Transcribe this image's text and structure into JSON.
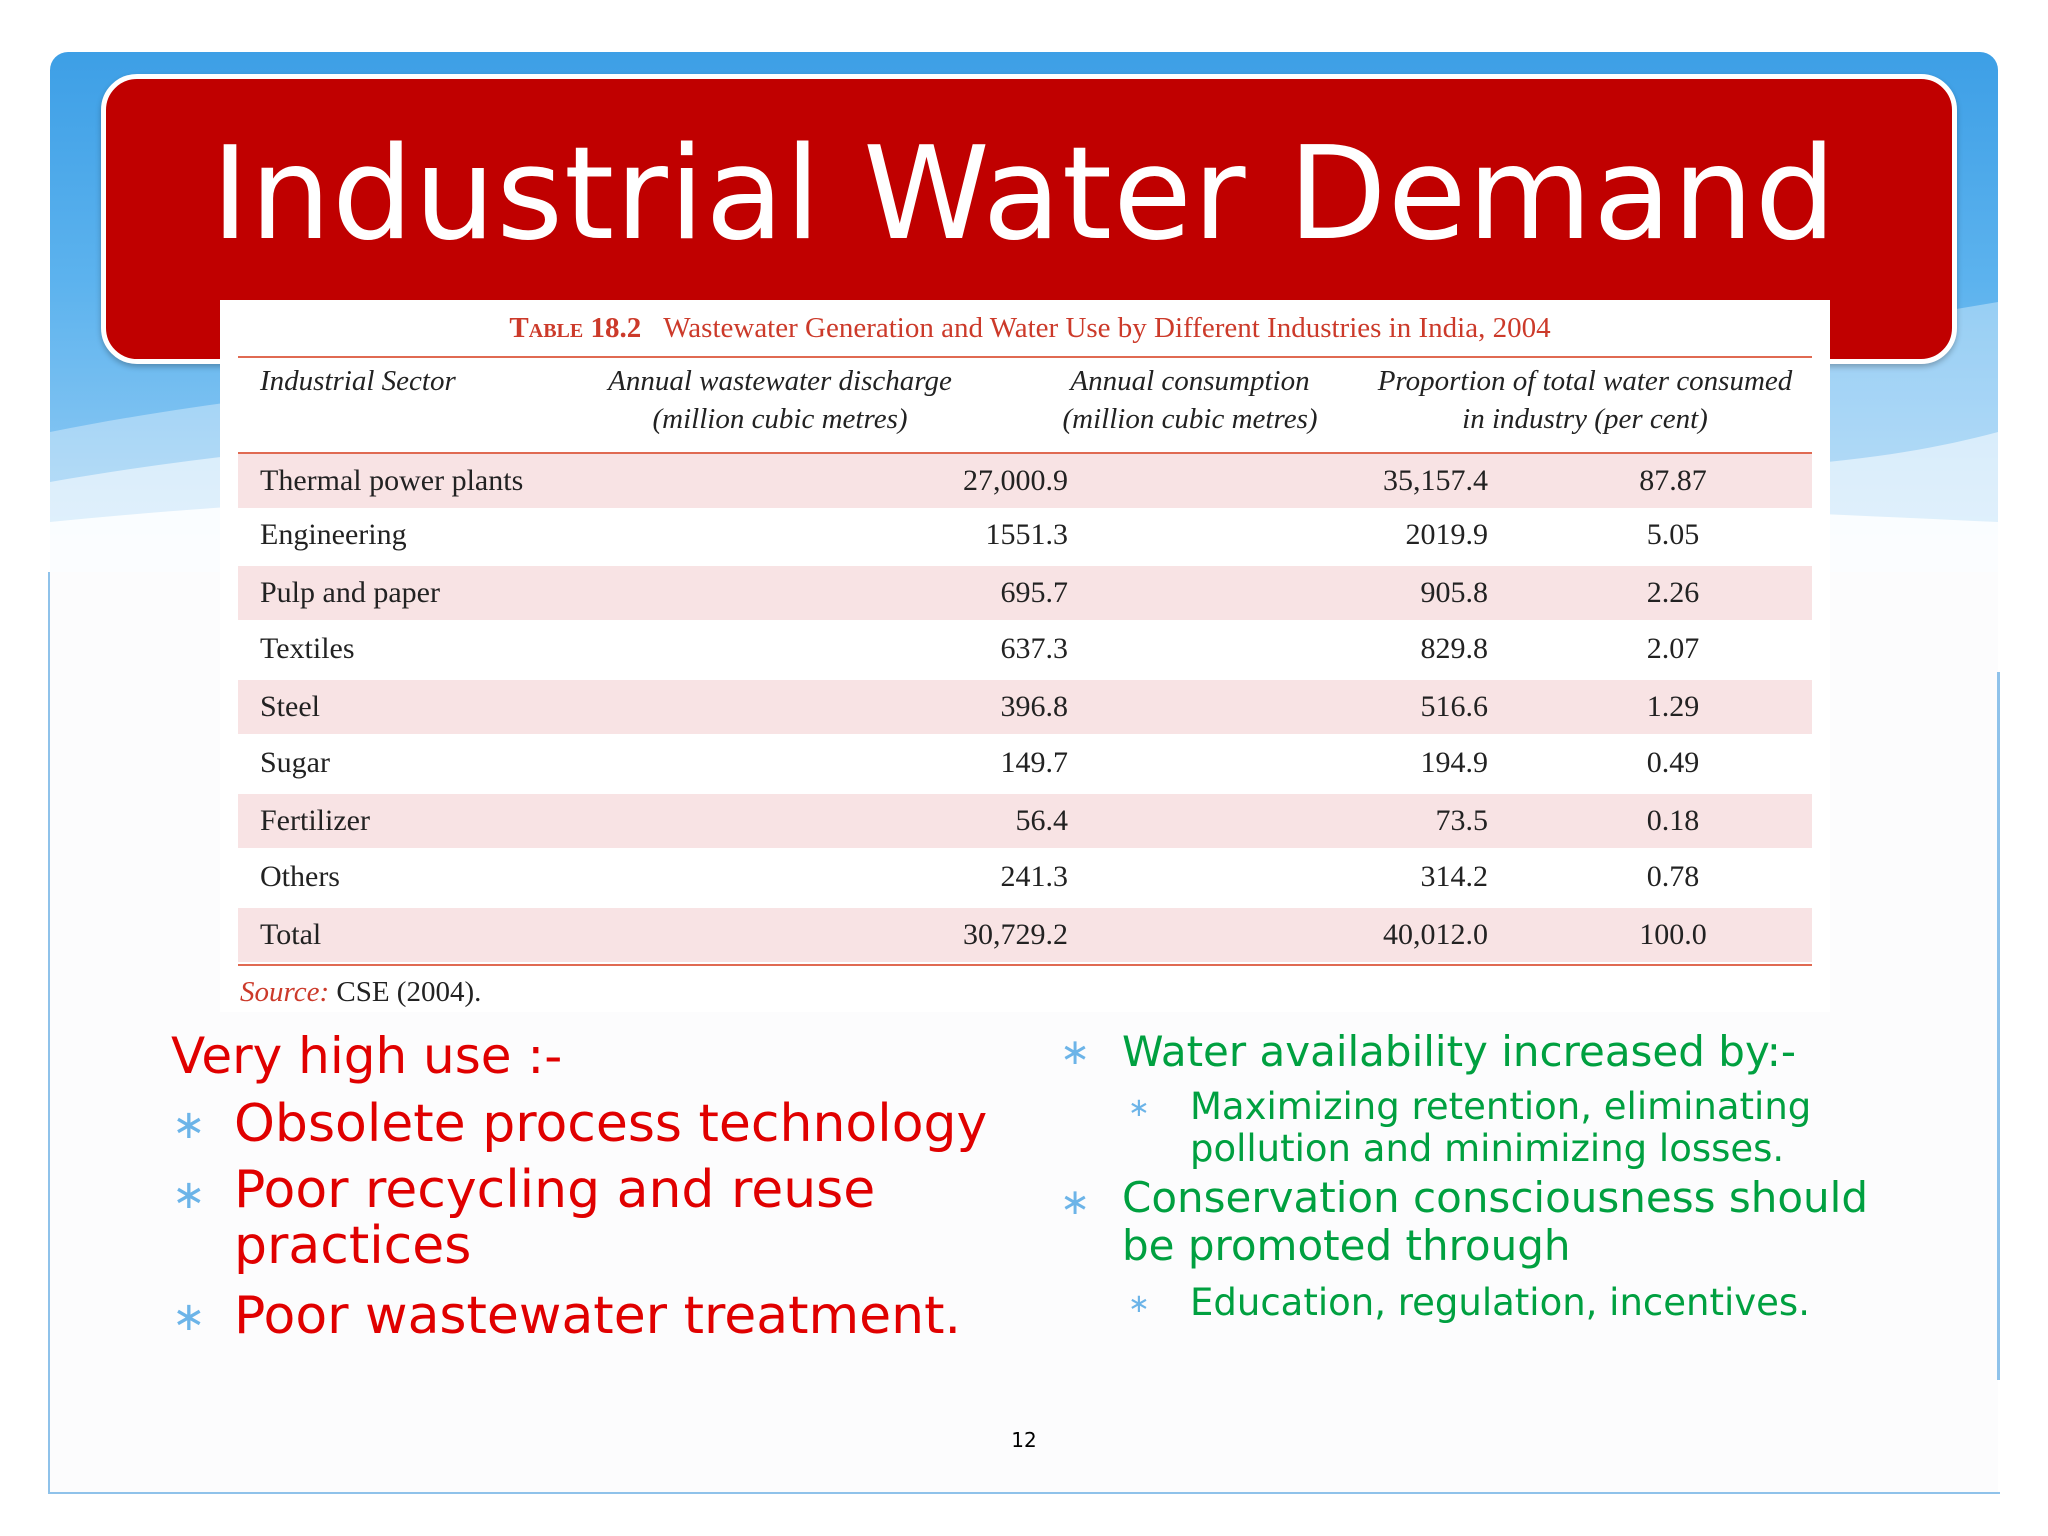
{
  "slide": {
    "title": "Industrial Water Demand",
    "page_number": "12"
  },
  "table": {
    "label": "Table 18.2",
    "caption": "Wastewater Generation and Water Use by Different Industries in India, 2004",
    "headers": [
      "Industrial Sector",
      "Annual wastewater discharge\n(million cubic metres)",
      "Annual consumption\n(million cubic metres)",
      "Proportion of total water consumed\nin industry (per cent)"
    ],
    "rows": [
      [
        "Thermal power plants",
        "27,000.9",
        "35,157.4",
        "87.87"
      ],
      [
        "Engineering",
        "1551.3",
        "2019.9",
        "5.05"
      ],
      [
        "Pulp and paper",
        "695.7",
        "905.8",
        "2.26"
      ],
      [
        "Textiles",
        "637.3",
        "829.8",
        "2.07"
      ],
      [
        "Steel",
        "396.8",
        "516.6",
        "1.29"
      ],
      [
        "Sugar",
        "149.7",
        "194.9",
        "0.49"
      ],
      [
        "Fertilizer",
        "56.4",
        "73.5",
        "0.18"
      ],
      [
        "Others",
        "241.3",
        "314.2",
        "0.78"
      ],
      [
        "Total",
        "30,729.2",
        "40,012.0",
        "100.0"
      ]
    ],
    "source_label": "Source:",
    "source_text": "CSE (2004)."
  },
  "left_column": {
    "heading": "Very high use :-",
    "bullets": [
      "Obsolete process technology",
      "Poor recycling and reuse",
      "practices",
      "Poor wastewater treatment."
    ]
  },
  "right_column": {
    "bullet1": "Water availability increased by:-",
    "sub1_line1": "Maximizing retention, eliminating",
    "sub1_line2": "pollution and minimizing losses.",
    "bullet2_line1": "Conservation consciousness should",
    "bullet2_line2": "be promoted through",
    "sub2": "Education, regulation, incentives."
  },
  "colors": {
    "title_banner": "#c00000",
    "band_blue": "#3d9fe6",
    "red_text": "#e00000",
    "green_text": "#00a040",
    "bullet_star": "#6cb4e8",
    "table_accent": "#cc3a2a",
    "row_shade": "#f8e3e4"
  },
  "icons": {
    "bullet": "asterisk-bullet-icon"
  }
}
